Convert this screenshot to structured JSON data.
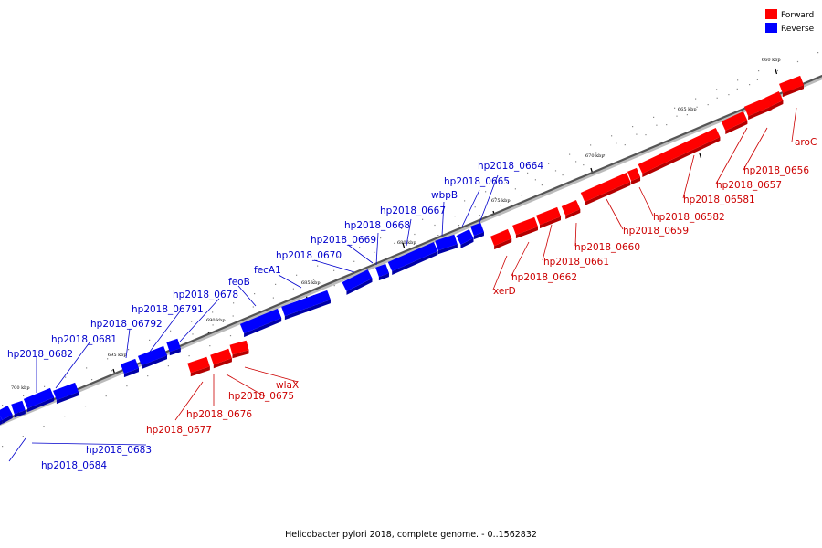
{
  "caption": "Helicobacter pylori 2018, complete genome. - 0..1562832",
  "legend": [
    {
      "label": "Forward",
      "color": "#ff0000"
    },
    {
      "label": "Reverse",
      "color": "#0000ff"
    }
  ],
  "colors": {
    "forward": "#ff0000",
    "forward_shade": "#b30000",
    "reverse": "#0000ff",
    "reverse_shade": "#0000a6",
    "forward_label": "#cc0000",
    "reverse_label": "#0000cc",
    "backbone": "#555555"
  },
  "ticks": [
    {
      "label": "660 kbp"
    },
    {
      "label": "665 kbp"
    },
    {
      "label": "670 kbp"
    },
    {
      "label": "675 kbp"
    },
    {
      "label": "680 kbp"
    },
    {
      "label": "685 kbp"
    },
    {
      "label": "690 kbp"
    },
    {
      "label": "695 kbp"
    },
    {
      "label": "700 kbp"
    }
  ],
  "forward_genes": [
    {
      "name": "aroC"
    },
    {
      "name": "hp2018_0656"
    },
    {
      "name": "hp2018_0657"
    },
    {
      "name": "hp2018_06581"
    },
    {
      "name": "hp2018_06582"
    },
    {
      "name": "hp2018_0659"
    },
    {
      "name": "hp2018_0660"
    },
    {
      "name": "hp2018_0661"
    },
    {
      "name": "hp2018_0662"
    },
    {
      "name": "xerD"
    },
    {
      "name": "wlaX"
    },
    {
      "name": "hp2018_0675"
    },
    {
      "name": "hp2018_0676"
    },
    {
      "name": "hp2018_0677"
    }
  ],
  "reverse_genes": [
    {
      "name": "hp2018_0664"
    },
    {
      "name": "hp2018_0665"
    },
    {
      "name": "wbpB"
    },
    {
      "name": "hp2018_0667"
    },
    {
      "name": "hp2018_0668"
    },
    {
      "name": "hp2018_0669"
    },
    {
      "name": "hp2018_0670"
    },
    {
      "name": "fecA1"
    },
    {
      "name": "feoB"
    },
    {
      "name": "hp2018_0678"
    },
    {
      "name": "hp2018_06791"
    },
    {
      "name": "hp2018_06792"
    },
    {
      "name": "hp2018_0681"
    },
    {
      "name": "hp2018_0682"
    },
    {
      "name": "hp2018_0683"
    },
    {
      "name": "hp2018_0684"
    }
  ]
}
